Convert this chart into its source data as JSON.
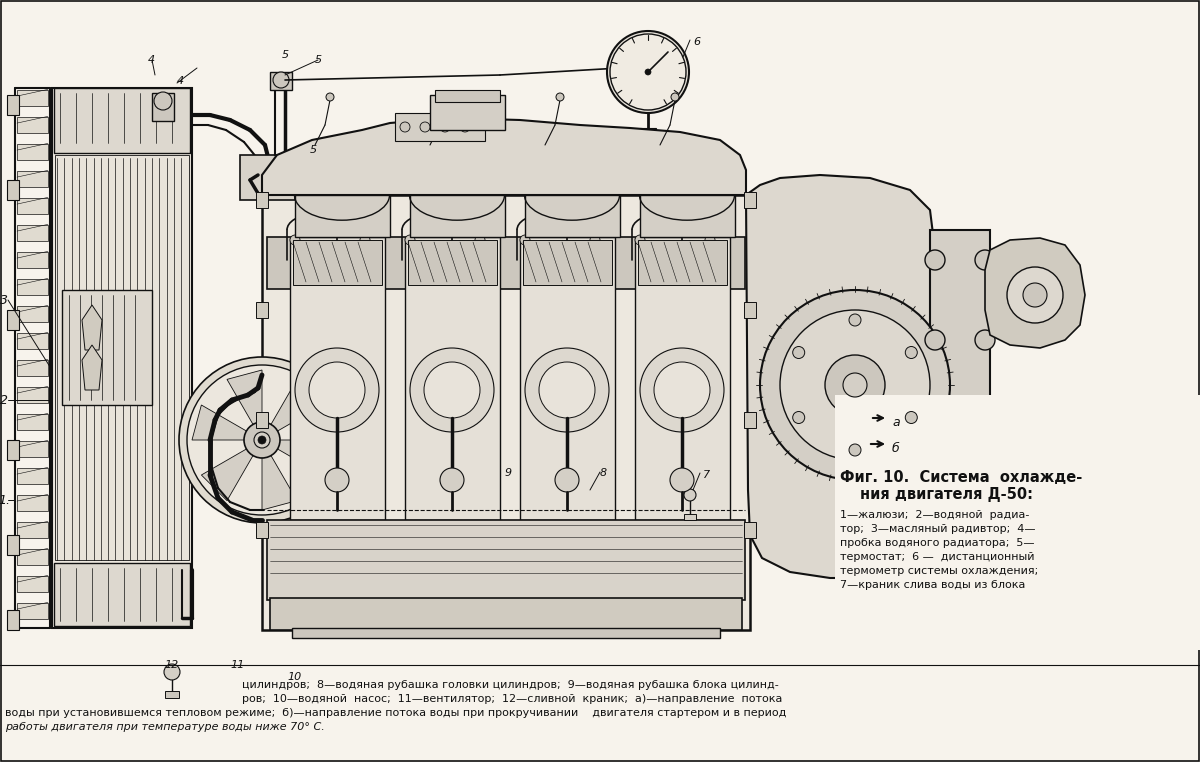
{
  "bg_color": "#f7f3ec",
  "line_color": "#111111",
  "fig_width": 12.0,
  "fig_height": 7.62,
  "dpi": 100,
  "title_line1": "Фиг. 10.  Система  охлажде-",
  "title_line2": "ния двигателя Д-50:",
  "cap1": "1—жалюзи;  2—водяной  радиа-",
  "cap2": "тор;  3—масляный радивтор;  4—",
  "cap3": "пробка водяного радиатора;  5—",
  "cap4": "термостат;  6 —  дистанционный",
  "cap5": "термометр системы охлаждения;",
  "cap6": "7—краник слива воды из блока",
  "bot1": "цилиндров;  8—водяная рубашка головки цилиндров;  9—водяная рубашка блока цилинд-",
  "bot2": "ров;  10—водяной  насос;  11—вентилятор;  12—сливной  краник;  а)—направление  потока",
  "bot3": "воды при установившемся тепловом режиме;  б)—направление потока воды при прокручивании    двигателя стартером и в период",
  "bot4": "работы двигателя при температуре воды ниже 70° С."
}
